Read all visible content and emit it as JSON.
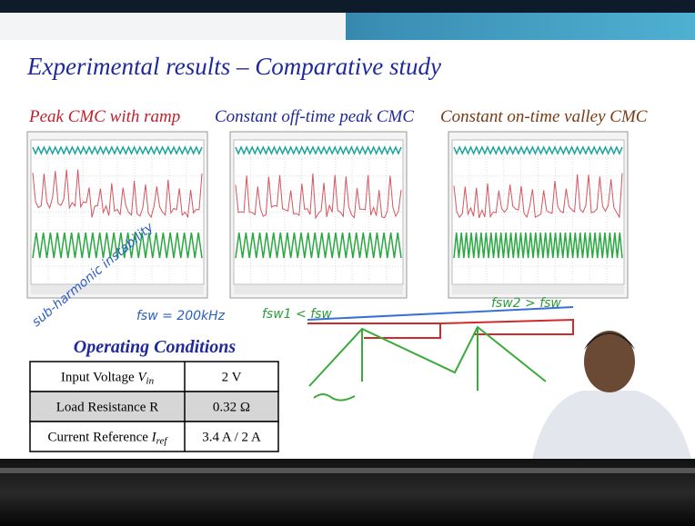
{
  "slide": {
    "title": "Experimental results – Comparative study",
    "captions": [
      "Peak CMC with ramp",
      "Constant off-time peak CMC",
      "Constant on-time valley CMC"
    ],
    "annotations": {
      "instability": "sub-harmonic instability",
      "fsw": "fsw = 200kHz",
      "fsw1": "fsw1 < fsw",
      "fsw2": "fsw2 > fsw"
    },
    "table": {
      "heading": "Operating Conditions",
      "rows": [
        {
          "label": "Input Voltage",
          "symbol": "V",
          "sub": "in",
          "value": "2 V"
        },
        {
          "label": "Load Resistance R",
          "value": "0.32 Ω"
        },
        {
          "label": "Current Reference",
          "symbol": "I",
          "sub": "ref",
          "value": "3.4 A / 2 A"
        }
      ]
    }
  }
}
